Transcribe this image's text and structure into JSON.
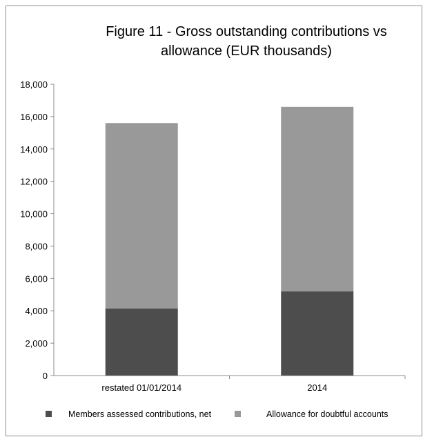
{
  "chart_data": {
    "type": "bar",
    "stacked": true,
    "title_lines": [
      "Figure 11 - Gross outstanding contributions vs",
      "allowance (EUR thousands)"
    ],
    "categories": [
      "restated 01/01/2014",
      "2014"
    ],
    "series": [
      {
        "name": "Members assessed contributions, net",
        "values": [
          4150,
          5200
        ],
        "color": "#4d4d4d"
      },
      {
        "name": "Allowance for doubtful accounts",
        "values": [
          11450,
          11400
        ],
        "color": "#999999"
      }
    ],
    "ylim": [
      0,
      18000
    ],
    "yticks": [
      0,
      2000,
      4000,
      6000,
      8000,
      10000,
      12000,
      14000,
      16000,
      18000
    ],
    "ytick_labels": [
      "0",
      "2,000",
      "4,000",
      "6,000",
      "8,000",
      "10,000",
      "12,000",
      "14,000",
      "16,000",
      "18,000"
    ],
    "xlabel": "",
    "ylabel": "",
    "grid": false,
    "legend_position": "bottom"
  }
}
